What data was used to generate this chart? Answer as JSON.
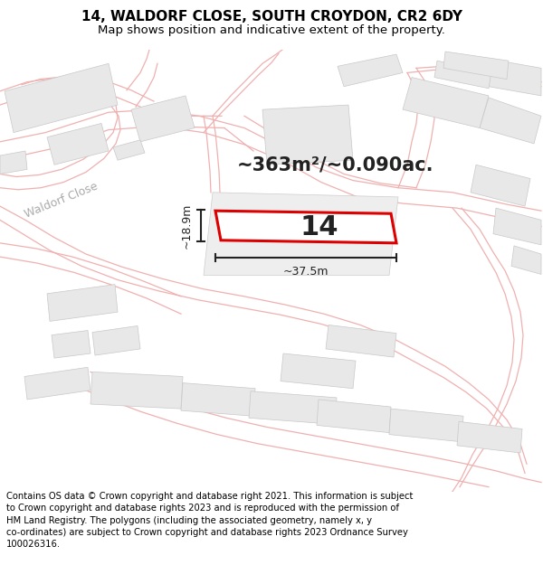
{
  "title": "14, WALDORF CLOSE, SOUTH CROYDON, CR2 6DY",
  "subtitle": "Map shows position and indicative extent of the property.",
  "footer": "Contains OS data © Crown copyright and database right 2021. This information is subject to Crown copyright and database rights 2023 and is reproduced with the permission of HM Land Registry. The polygons (including the associated geometry, namely x, y co-ordinates) are subject to Crown copyright and database rights 2023 Ordnance Survey 100026316.",
  "area_label": "~363m²/~0.090ac.",
  "width_label": "~37.5m",
  "height_label": "~18.9m",
  "number_label": "14",
  "plot_color": "#dd0000",
  "building_fill": "#e8e8e8",
  "building_edge": "#cccccc",
  "road_line_color": "#f0b0b0",
  "road_label_color": "#aaaaaa",
  "dim_color": "#222222",
  "text_color": "#222222",
  "title_fontsize": 11,
  "subtitle_fontsize": 9.5,
  "footer_fontsize": 7.2,
  "area_fontsize": 15,
  "number_fontsize": 22,
  "dim_fontsize": 9,
  "road_label_fontsize": 9
}
